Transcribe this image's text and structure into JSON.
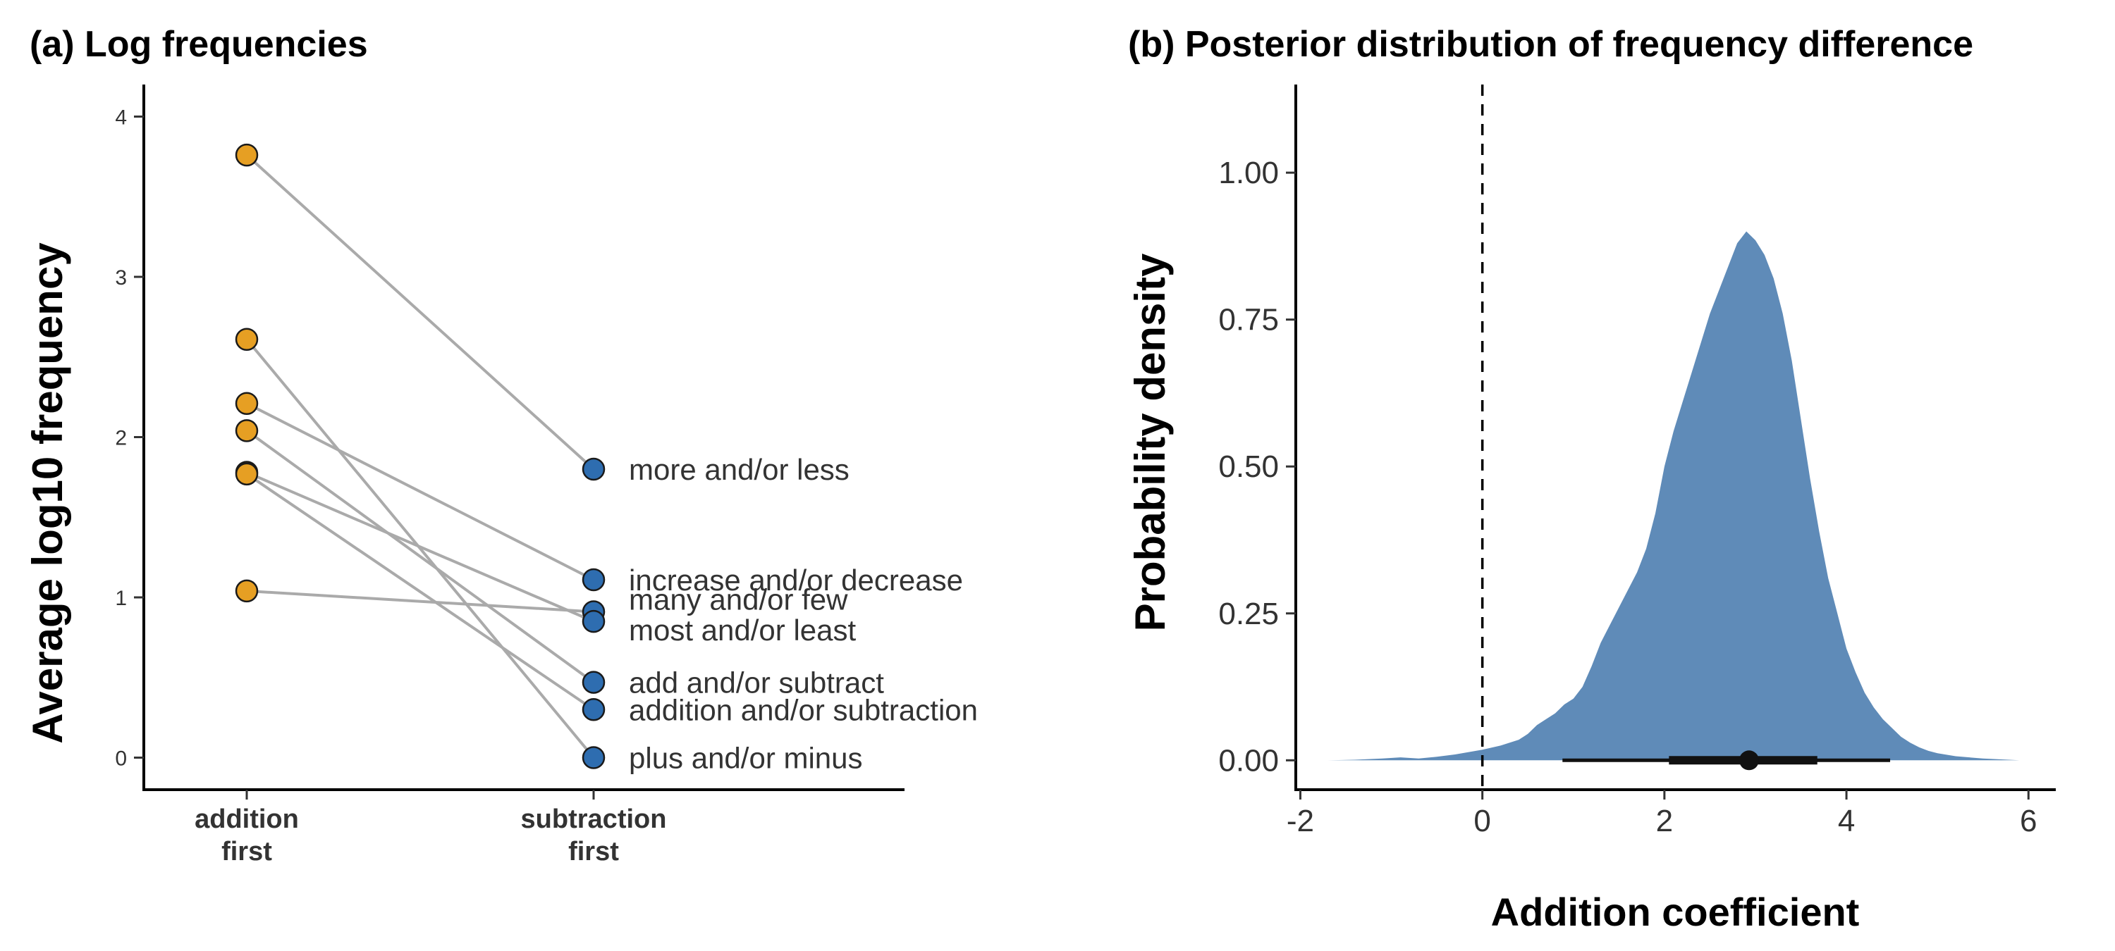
{
  "chart_data": [
    {
      "type": "line",
      "title": "(a) Log frequencies",
      "ylabel": "Average log10 frequency",
      "xlabel": "",
      "categories": [
        "addition first",
        "subtraction first"
      ],
      "category_lines": [
        [
          "addition",
          "first"
        ],
        [
          "subtraction",
          "first"
        ]
      ],
      "yticks": [
        0,
        1,
        2,
        3,
        4
      ],
      "ylim": [
        -0.2,
        4.2
      ],
      "colors": {
        "addition": "#E69F23",
        "subtraction": "#2E6DB0",
        "line": "#AAAAAA"
      },
      "pairs": [
        {
          "name": "more and/or less",
          "addition": 3.76,
          "subtraction": 1.8
        },
        {
          "name": "increase and/or decrease",
          "addition": 2.21,
          "subtraction": 1.11
        },
        {
          "name": "many and/or few",
          "addition": 1.04,
          "subtraction": 0.91
        },
        {
          "name": "most and/or least",
          "addition": 1.78,
          "subtraction": 0.85
        },
        {
          "name": "add and/or subtract",
          "addition": 2.04,
          "subtraction": 0.47
        },
        {
          "name": "addition and/or subtraction",
          "addition": 1.77,
          "subtraction": 0.3
        },
        {
          "name": "plus and/or minus",
          "addition": 2.61,
          "subtraction": 0.0
        }
      ]
    },
    {
      "type": "area",
      "title": "(b) Posterior distribution of frequency difference",
      "ylabel": "Probability density",
      "xlabel": "Addition coefficient",
      "xticks": [
        -2,
        0,
        2,
        4,
        6
      ],
      "yticks": [
        "0.00",
        "0.25",
        "0.50",
        "0.75",
        "1.00"
      ],
      "xlim": [
        -2.05,
        6.3
      ],
      "ylim": [
        -0.05,
        1.15
      ],
      "fill_color": "#5F8BB8",
      "reference_line_x": 0,
      "density": {
        "x": [
          -1.7,
          -1.4,
          -1.1,
          -0.9,
          -0.7,
          -0.5,
          -0.3,
          0.0,
          0.2,
          0.4,
          0.5,
          0.6,
          0.7,
          0.8,
          0.9,
          1.0,
          1.1,
          1.2,
          1.3,
          1.4,
          1.5,
          1.6,
          1.7,
          1.8,
          1.9,
          2.0,
          2.1,
          2.2,
          2.3,
          2.4,
          2.5,
          2.6,
          2.7,
          2.8,
          2.9,
          3.0,
          3.1,
          3.2,
          3.3,
          3.4,
          3.5,
          3.6,
          3.7,
          3.8,
          3.9,
          4.0,
          4.1,
          4.2,
          4.3,
          4.4,
          4.5,
          4.6,
          4.7,
          4.8,
          4.9,
          5.0,
          5.2,
          5.5,
          5.9
        ],
        "y": [
          0.0,
          0.001,
          0.003,
          0.005,
          0.003,
          0.006,
          0.01,
          0.018,
          0.025,
          0.035,
          0.045,
          0.06,
          0.07,
          0.08,
          0.095,
          0.105,
          0.125,
          0.16,
          0.2,
          0.23,
          0.26,
          0.29,
          0.32,
          0.36,
          0.42,
          0.5,
          0.56,
          0.61,
          0.66,
          0.71,
          0.76,
          0.8,
          0.84,
          0.88,
          0.9,
          0.885,
          0.86,
          0.82,
          0.76,
          0.68,
          0.58,
          0.48,
          0.39,
          0.31,
          0.25,
          0.19,
          0.15,
          0.115,
          0.09,
          0.07,
          0.055,
          0.04,
          0.03,
          0.022,
          0.016,
          0.012,
          0.007,
          0.003,
          0.0
        ]
      },
      "point_estimate": 2.93,
      "interval_inner": [
        2.05,
        3.68
      ],
      "interval_outer": [
        0.88,
        4.48
      ]
    }
  ]
}
